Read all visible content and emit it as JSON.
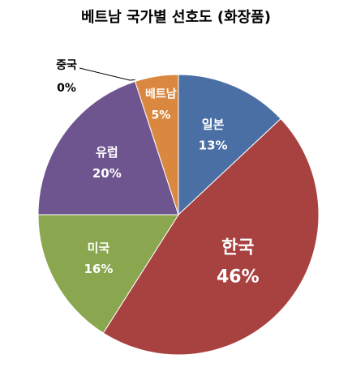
{
  "chart_data": {
    "type": "pie",
    "title": "베트남 국가별 선호도 (화장품)",
    "slices": [
      {
        "name": "일본",
        "value": 13,
        "label": "13%",
        "color": "#4A6FA5"
      },
      {
        "name": "한국",
        "value": 46,
        "label": "46%",
        "color": "#A84241"
      },
      {
        "name": "미국",
        "value": 16,
        "label": "16%",
        "color": "#8AA64E"
      },
      {
        "name": "유럽",
        "value": 20,
        "label": "20%",
        "color": "#6F5590"
      },
      {
        "name": "중국",
        "value": 0,
        "label": "0%",
        "color": "#3F9DB5"
      },
      {
        "name": "베트남",
        "value": 5,
        "label": "5%",
        "color": "#DA8840"
      }
    ],
    "start_angle_deg": 0,
    "direction": "clockwise",
    "legend": "none"
  }
}
